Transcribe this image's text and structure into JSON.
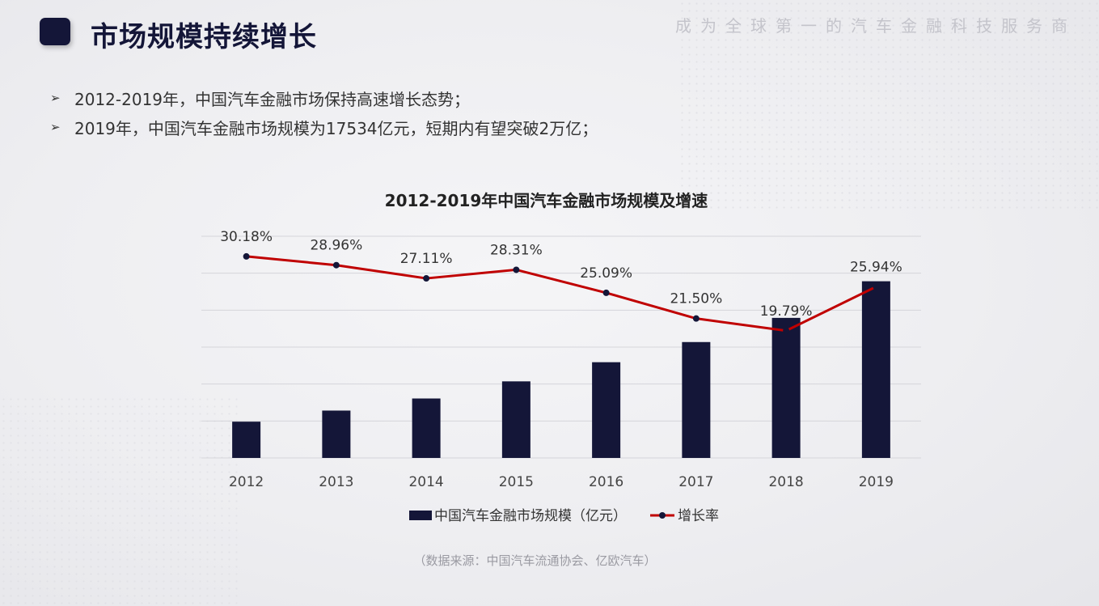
{
  "header": {
    "title": "市场规模持续增长",
    "slogan": "成为全球第一的汽车金融科技服务商"
  },
  "bullets": [
    "2012-2019年，中国汽车金融市场保持高速增长态势；",
    "2019年，中国汽车金融市场规模为17534亿元，短期内有望突破2万亿；"
  ],
  "source_note": "（数据来源：中国汽车流通协会、亿欧汽车）",
  "colors": {
    "bar": "#141638",
    "line": "#c00000",
    "marker": "#141638",
    "grid": "#d5d5da"
  },
  "chart_data": {
    "type": "bar+line",
    "title": "2012-2019年中国汽车金融市场规模及增速",
    "categories": [
      "2012",
      "2013",
      "2014",
      "2015",
      "2016",
      "2017",
      "2018",
      "2019"
    ],
    "series": [
      {
        "name": "中国汽车金融市场规模（亿元）",
        "type": "bar",
        "values": [
          3600,
          4700,
          5900,
          7600,
          9500,
          11500,
          13900,
          17534
        ]
      },
      {
        "name": "增长率",
        "type": "line",
        "values": [
          30.18,
          28.96,
          27.11,
          28.31,
          25.09,
          21.5,
          19.79,
          25.94
        ],
        "labels": [
          "30.18%",
          "28.96%",
          "27.11%",
          "28.31%",
          "25.09%",
          "21.50%",
          "19.79%",
          "25.94%"
        ]
      }
    ],
    "legend": "bottom",
    "grid": true
  }
}
